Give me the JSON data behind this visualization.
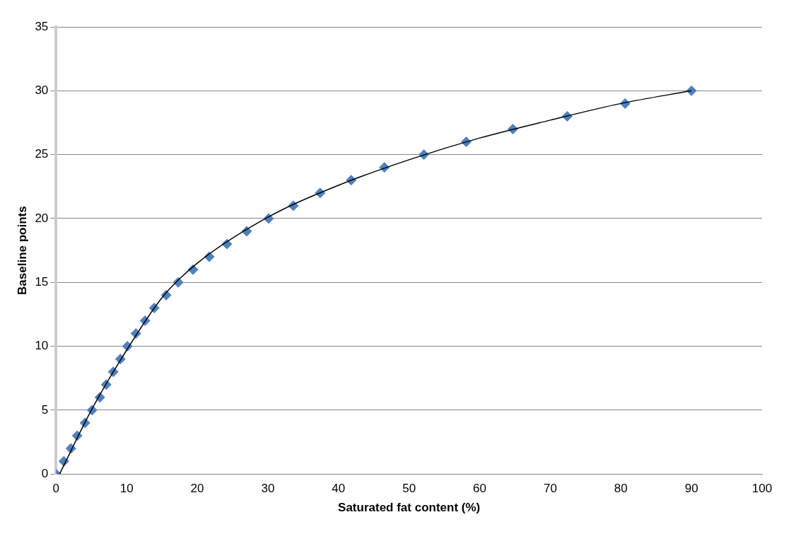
{
  "chart_data": {
    "type": "scatter",
    "xlabel": "Saturated fat content (%)",
    "ylabel": "Baseline points",
    "xlim": [
      0,
      100
    ],
    "xticks": [
      0,
      10,
      20,
      30,
      40,
      50,
      60,
      70,
      80,
      90,
      100
    ],
    "ylim": [
      0,
      35
    ],
    "yticks": [
      0,
      5,
      10,
      15,
      20,
      25,
      30,
      35
    ],
    "grid": "y",
    "legend": false,
    "series": [
      {
        "type": "scatter",
        "marker": "diamond",
        "color": "#4f81bd",
        "x": [
          0,
          1.1,
          2.1,
          3.0,
          4.1,
          5.1,
          6.2,
          7.1,
          8.1,
          9.1,
          10.1,
          11.3,
          12.6,
          13.9,
          15.6,
          17.3,
          19.4,
          21.7,
          24.2,
          27.0,
          30.1,
          33.6,
          37.4,
          41.8,
          46.5,
          52.1,
          58.1,
          64.7,
          72.4,
          80.6,
          90.0
        ],
        "values": [
          0,
          1,
          2,
          3,
          4,
          5,
          6,
          7,
          8,
          9,
          10,
          11,
          12,
          13,
          14,
          15,
          16,
          17,
          18,
          19,
          20,
          21,
          22,
          23,
          24,
          25,
          26,
          27,
          28,
          29,
          30
        ]
      },
      {
        "type": "line",
        "marker": "none",
        "line_style": "solid",
        "color": "#000000",
        "x": [
          0.5,
          5,
          10,
          15,
          20,
          30,
          40,
          50,
          60,
          70,
          80,
          90
        ],
        "values": [
          0,
          5.0,
          9.7,
          13.8,
          16.5,
          20.1,
          22.6,
          24.6,
          26.3,
          27.7,
          29.0,
          30.0
        ]
      }
    ]
  }
}
